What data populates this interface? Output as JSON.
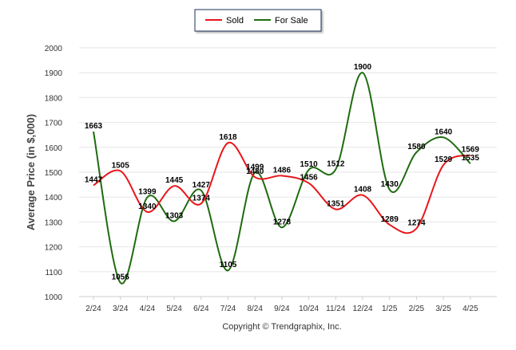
{
  "chart_data": {
    "type": "line",
    "ylabel": "Average Price (in $,000)",
    "xlabel": "",
    "ylim": [
      1000,
      2000
    ],
    "yticks": [
      1000,
      1100,
      1200,
      1300,
      1400,
      1500,
      1600,
      1700,
      1800,
      1900,
      2000
    ],
    "categories": [
      "2/24",
      "3/24",
      "4/24",
      "5/24",
      "6/24",
      "7/24",
      "8/24",
      "9/24",
      "10/24",
      "11/24",
      "12/24",
      "1/25",
      "2/25",
      "3/25",
      "4/25"
    ],
    "series": [
      {
        "name": "Sold",
        "color": "#e8161b",
        "values": [
          1447,
          1505,
          1340,
          1445,
          1374,
          1618,
          1480,
          1486,
          1456,
          1351,
          1408,
          1289,
          1274,
          1529,
          1569
        ]
      },
      {
        "name": "For Sale",
        "color": "#1e6b0f",
        "values": [
          1663,
          1056,
          1399,
          1303,
          1427,
          1105,
          1499,
          1278,
          1510,
          1512,
          1900,
          1430,
          1580,
          1640,
          1535
        ]
      }
    ],
    "legend_position": "top-center",
    "grid": true,
    "footer": "Copyright © Trendgraphix, Inc."
  }
}
